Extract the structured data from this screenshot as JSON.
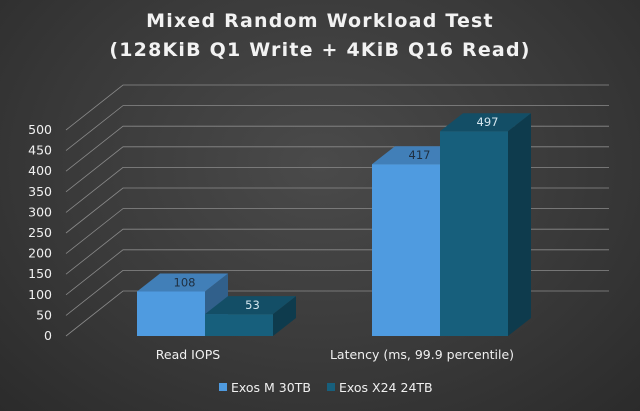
{
  "chart_data": {
    "type": "bar",
    "title_lines": [
      "Mixed Random Workload Test",
      "(128KiB Q1  Write + 4KiB Q16  Read)"
    ],
    "categories": [
      "Read IOPS",
      "Latency (ms, 99.9 percentile)"
    ],
    "series": [
      {
        "name": "Exos M 30TB",
        "values": [
          108,
          417
        ],
        "color": "#4f9be0"
      },
      {
        "name": "Exos X24 24TB",
        "values": [
          53,
          497
        ],
        "color": "#175f7c"
      }
    ],
    "ylim": [
      0,
      500
    ],
    "yticks": [
      0,
      50,
      100,
      150,
      200,
      250,
      300,
      350,
      400,
      450,
      500
    ],
    "grid": true,
    "legend_position": "bottom",
    "style": "3d-clustered-column"
  }
}
